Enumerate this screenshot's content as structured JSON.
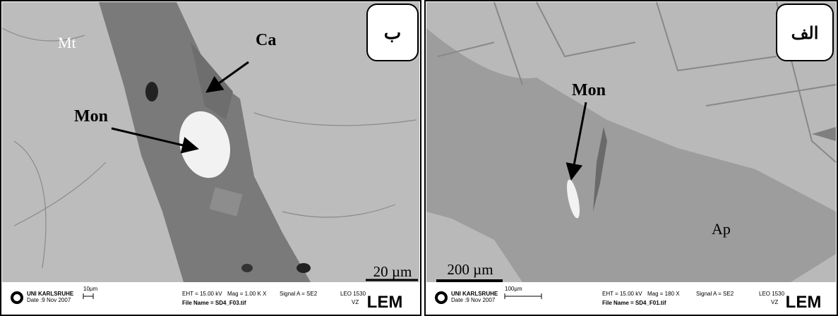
{
  "panels": [
    {
      "label": "ب",
      "annotations": [
        "Mt",
        "Ca",
        "Mon"
      ],
      "scale_bar": "20 µm",
      "info": {
        "institution": "UNI KARLSRUHE",
        "date": "Date :9 Nov 2007",
        "scale": "10µm",
        "eht": "EHT = 15.00 kV",
        "mag": "Mag = 1.00 K X",
        "signal": "Signal A = SE2",
        "instrument": "LEO 1530",
        "vz": "VZ",
        "file_name": "File Name = SD4_F03.tif",
        "logo": "LEM"
      }
    },
    {
      "label": "الف",
      "annotations": [
        "Mon",
        "Ap"
      ],
      "scale_bar": "200 µm",
      "info": {
        "institution": "UNI KARLSRUHE",
        "date": "Date :9 Nov 2007",
        "scale": "100µm",
        "eht": "EHT = 15.00 kV",
        "mag": "Mag = 180 X",
        "signal": "Signal A = SE2",
        "instrument": "LEO 1530",
        "vz": "VZ",
        "file_name": "File Name = SD4_F01.tif",
        "logo": "LEM"
      }
    }
  ]
}
